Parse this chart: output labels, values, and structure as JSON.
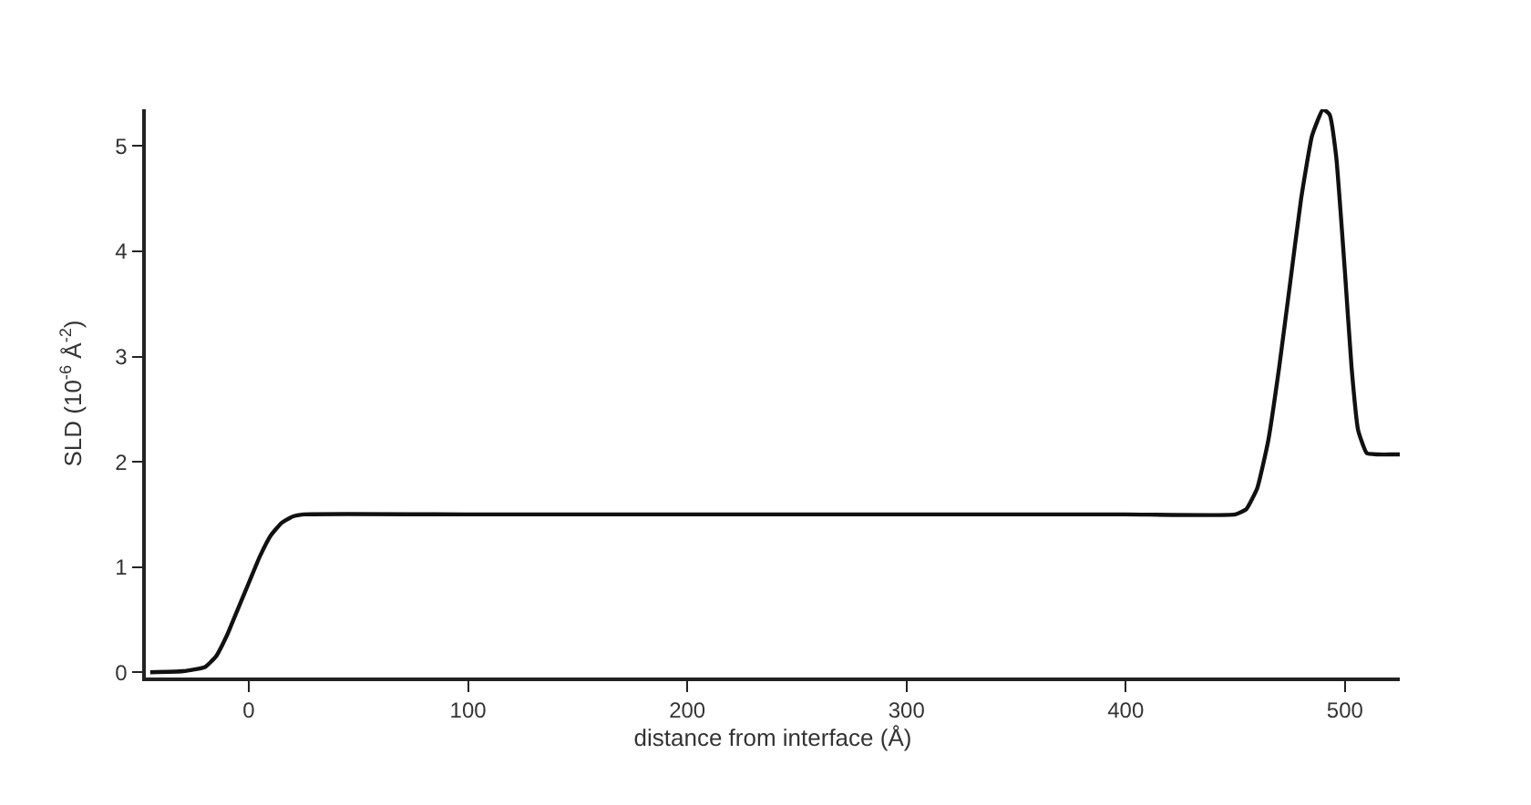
{
  "chart_data": {
    "type": "line",
    "xlabel": "distance from interface (Å)",
    "ylabel": "SLD (10$^{-6}$ Å$^{-2}$)",
    "x": [
      -45,
      -30,
      -20,
      -15,
      -10,
      -5,
      0,
      5,
      10,
      15,
      20,
      25,
      100,
      200,
      300,
      400,
      450,
      455,
      460,
      465,
      470,
      475,
      480,
      485,
      490,
      493,
      496,
      500,
      503,
      506,
      510,
      515,
      525
    ],
    "series": [
      {
        "color": "#111111",
        "values": [
          0,
          0.01,
          0.05,
          0.15,
          0.35,
          0.6,
          0.85,
          1.1,
          1.3,
          1.42,
          1.48,
          1.5,
          1.5,
          1.5,
          1.5,
          1.5,
          1.5,
          1.55,
          1.75,
          2.2,
          2.9,
          3.7,
          4.5,
          5.1,
          5.35,
          5.3,
          4.9,
          3.8,
          2.9,
          2.3,
          2.08,
          2.07,
          2.07
        ]
      }
    ],
    "xlim": [
      -47,
      525
    ],
    "xticks": [
      0,
      100,
      200,
      300,
      400,
      500
    ],
    "ylim": [
      -0.05,
      5.35
    ],
    "yticks": [
      0,
      1,
      2,
      3,
      4,
      5
    ],
    "legend": false,
    "marker": "none",
    "line_style": "solid"
  }
}
